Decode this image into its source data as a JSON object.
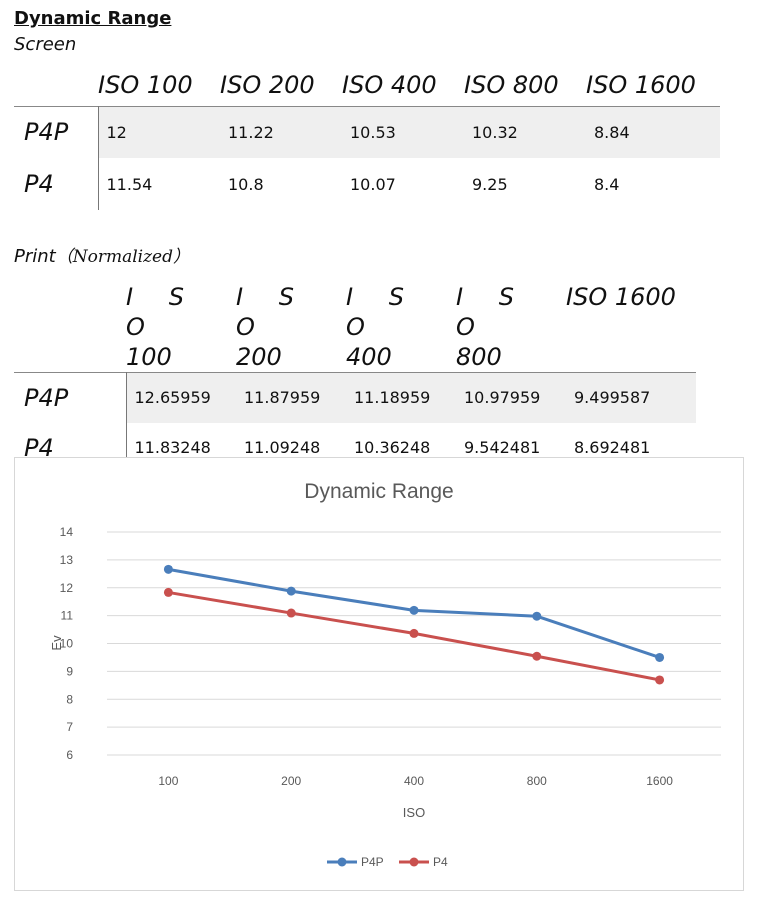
{
  "heading": {
    "title": "Dynamic Range",
    "subtitle": "Screen",
    "print_label": "Print",
    "print_note": "（Normalized）"
  },
  "screen_table": {
    "columns": [
      "ISO 100",
      "ISO 200",
      "ISO 400",
      "ISO 800",
      "ISO 1600"
    ],
    "rows": [
      {
        "label": "P4P",
        "values": [
          "12",
          "11.22",
          "10.53",
          "10.32",
          "8.84"
        ]
      },
      {
        "label": "P4",
        "values": [
          "11.54",
          "10.8",
          "10.07",
          "9.25",
          "8.4"
        ]
      }
    ]
  },
  "print_table": {
    "columns": [
      {
        "top": "I S O",
        "bottom": "100"
      },
      {
        "top": "I S O",
        "bottom": "200"
      },
      {
        "top": "I S O",
        "bottom": "400"
      },
      {
        "top": "I S O",
        "bottom": "800"
      },
      {
        "top": "ISO 1600",
        "bottom": ""
      }
    ],
    "rows": [
      {
        "label": "P4P",
        "values": [
          "12.65959",
          "11.87959",
          "11.18959",
          "10.97959",
          "9.499587"
        ]
      },
      {
        "label": "P4",
        "values": [
          "11.83248",
          "11.09248",
          "10.36248",
          "9.542481",
          "8.692481"
        ]
      }
    ]
  },
  "chart_data": {
    "type": "line",
    "title": "Dynamic Range",
    "xlabel": "ISO",
    "ylabel": "Ev",
    "categories": [
      "100",
      "200",
      "400",
      "800",
      "1600"
    ],
    "ylim": [
      6,
      14
    ],
    "yticks": [
      6,
      7,
      8,
      9,
      10,
      11,
      12,
      13,
      14
    ],
    "grid": true,
    "legend": "bottom",
    "series": [
      {
        "name": "P4P",
        "color": "#4a7ebb",
        "values": [
          12.65959,
          11.87959,
          11.18959,
          10.97959,
          9.499587
        ]
      },
      {
        "name": "P4",
        "color": "#c9504e",
        "values": [
          11.83248,
          11.09248,
          10.36248,
          9.542481,
          8.692481
        ]
      }
    ]
  }
}
